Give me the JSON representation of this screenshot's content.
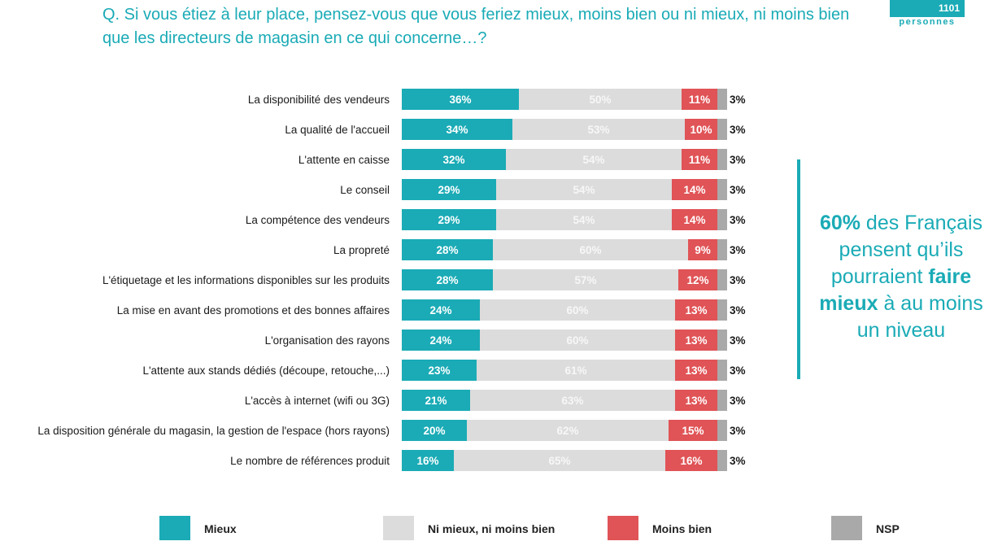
{
  "header": {
    "question": "Q. Si vous étiez à leur place, pensez-vous que vous feriez mieux, moins bien ou ni mieux, ni moins bien que les directeurs de magasin en ce qui concerne…?",
    "sample_number": "1101",
    "sample_label": "personnes"
  },
  "callout": {
    "pct": "60%",
    "text1": " des Français pensent qu’ils pourraient ",
    "bold": "faire mieux",
    "text2": " à au moins un niveau"
  },
  "colors": {
    "mieux": "#1aabb6",
    "neutre": "#dcdcdc",
    "moins": "#e05356",
    "nsp": "#a9a9a9"
  },
  "legend": [
    {
      "key": "mieux",
      "label": "Mieux"
    },
    {
      "key": "neutre",
      "label": "Ni mieux, ni moins bien"
    },
    {
      "key": "moins",
      "label": "Moins bien"
    },
    {
      "key": "nsp",
      "label": "NSP"
    }
  ],
  "chart_data": {
    "type": "bar",
    "orientation": "horizontal",
    "stacked": true,
    "unit": "%",
    "categories": [
      "La disponibilité des vendeurs",
      "La qualité de l'accueil",
      "L'attente en caisse",
      "Le conseil",
      "La compétence des vendeurs",
      "La propreté",
      "L'étiquetage et les informations disponibles sur les produits",
      "La mise en avant des promotions et des bonnes affaires",
      "L'organisation des rayons",
      "L'attente aux stands dédiés (découpe, retouche,...)",
      "L'accès à internet (wifi ou 3G)",
      "La disposition générale du magasin, la gestion de l'espace (hors rayons)",
      "Le nombre de références produit"
    ],
    "series": [
      {
        "name": "Mieux",
        "key": "mieux",
        "values": [
          36,
          34,
          32,
          29,
          29,
          28,
          28,
          24,
          24,
          23,
          21,
          20,
          16
        ]
      },
      {
        "name": "Ni mieux, ni moins bien",
        "key": "neutre",
        "values": [
          50,
          53,
          54,
          54,
          54,
          60,
          57,
          60,
          60,
          61,
          63,
          62,
          65
        ]
      },
      {
        "name": "Moins bien",
        "key": "moins",
        "values": [
          11,
          10,
          11,
          14,
          14,
          9,
          12,
          13,
          13,
          13,
          13,
          15,
          16
        ]
      },
      {
        "name": "NSP",
        "key": "nsp",
        "values": [
          3,
          3,
          3,
          3,
          3,
          3,
          3,
          3,
          3,
          3,
          3,
          3,
          3
        ]
      }
    ],
    "xlim": [
      0,
      100
    ],
    "grid": false,
    "legend_position": "bottom"
  }
}
